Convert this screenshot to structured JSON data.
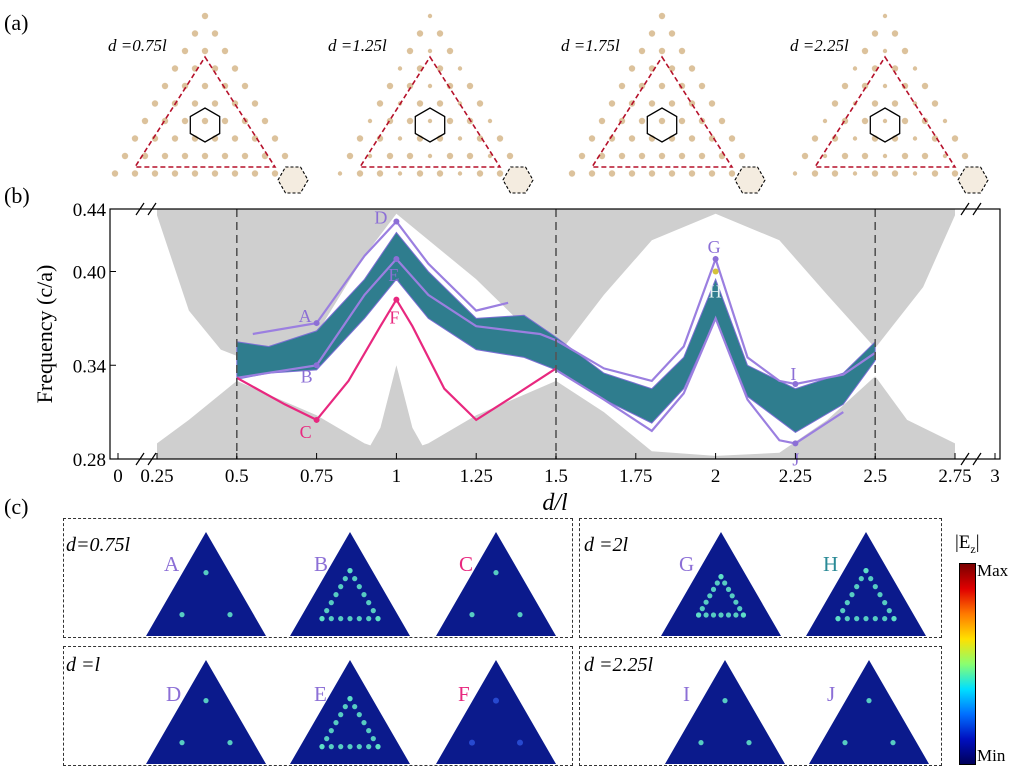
{
  "panel_labels": {
    "a": "(a)",
    "b": "(b)",
    "c": "(c)"
  },
  "lattices": [
    {
      "label": "d =0.75l"
    },
    {
      "label": "d =1.25l"
    },
    {
      "label": "d =1.75l"
    },
    {
      "label": "d =2.25l"
    }
  ],
  "colors": {
    "cylinder": "#dcc29c",
    "dashed_triangle": "#b5102a",
    "band_fill": "#2f7d8e",
    "gray_bulk": "#cfcfcf",
    "purple": "#9b7fe0",
    "pink": "#e8287f",
    "field_bg": "#0b1a8c"
  },
  "chart_data": {
    "type": "line",
    "xlabel": "d/l",
    "ylabel": "Frequency (c/a)",
    "xlim": [
      0,
      3
    ],
    "ylim": [
      0.28,
      0.44
    ],
    "x_ticks": [
      "0",
      "0.25",
      "0.5",
      "0.75",
      "1",
      "1.25",
      "1.5",
      "1.75",
      "2",
      "2.25",
      "2.5",
      "2.75",
      "3"
    ],
    "y_ticks": [
      "0.28",
      "0.34",
      "0.40",
      "0.44"
    ],
    "vertical_dashed_lines": [
      0.5,
      1.5,
      2.5
    ],
    "bulk_upper": [
      [
        0.25,
        0.436
      ],
      [
        0.35,
        0.375
      ],
      [
        0.45,
        0.35
      ],
      [
        0.5,
        0.346
      ],
      [
        0.75,
        0.36
      ],
      [
        0.9,
        0.41
      ],
      [
        1.0,
        0.437
      ],
      [
        1.25,
        0.395
      ],
      [
        1.4,
        0.365
      ],
      [
        1.5,
        0.345
      ],
      [
        1.65,
        0.385
      ],
      [
        1.8,
        0.42
      ],
      [
        2.0,
        0.437
      ],
      [
        2.2,
        0.42
      ],
      [
        2.35,
        0.385
      ],
      [
        2.5,
        0.351
      ],
      [
        2.65,
        0.39
      ],
      [
        2.75,
        0.436
      ]
    ],
    "bulk_lower": [
      [
        0.25,
        0.29
      ],
      [
        0.35,
        0.305
      ],
      [
        0.5,
        0.33
      ],
      [
        0.75,
        0.308
      ],
      [
        0.9,
        0.29
      ],
      [
        1.0,
        0.283
      ],
      [
        1.1,
        0.29
      ],
      [
        1.25,
        0.308
      ],
      [
        1.5,
        0.33
      ],
      [
        1.65,
        0.31
      ],
      [
        1.8,
        0.285
      ],
      [
        2.0,
        0.282
      ],
      [
        2.2,
        0.284
      ],
      [
        2.35,
        0.305
      ],
      [
        2.5,
        0.333
      ],
      [
        2.6,
        0.305
      ],
      [
        2.75,
        0.29
      ]
    ],
    "bulk_center_wedge_top": [
      [
        0.9,
        0.282
      ],
      [
        0.95,
        0.3
      ],
      [
        1.0,
        0.34
      ],
      [
        1.05,
        0.3
      ],
      [
        1.1,
        0.282
      ]
    ],
    "band_top": [
      [
        0.5,
        0.355
      ],
      [
        0.6,
        0.352
      ],
      [
        0.75,
        0.362
      ],
      [
        0.9,
        0.395
      ],
      [
        1.0,
        0.425
      ],
      [
        1.1,
        0.4
      ],
      [
        1.25,
        0.37
      ],
      [
        1.4,
        0.372
      ],
      [
        1.5,
        0.358
      ],
      [
        1.65,
        0.335
      ],
      [
        1.8,
        0.325
      ],
      [
        1.9,
        0.345
      ],
      [
        2.0,
        0.395
      ],
      [
        2.1,
        0.34
      ],
      [
        2.25,
        0.325
      ],
      [
        2.4,
        0.335
      ],
      [
        2.5,
        0.355
      ]
    ],
    "band_bottom": [
      [
        0.5,
        0.331
      ],
      [
        0.6,
        0.335
      ],
      [
        0.75,
        0.337
      ],
      [
        0.9,
        0.37
      ],
      [
        1.0,
        0.395
      ],
      [
        1.1,
        0.37
      ],
      [
        1.25,
        0.35
      ],
      [
        1.4,
        0.345
      ],
      [
        1.5,
        0.337
      ],
      [
        1.65,
        0.318
      ],
      [
        1.8,
        0.303
      ],
      [
        1.9,
        0.325
      ],
      [
        2.0,
        0.37
      ],
      [
        2.1,
        0.32
      ],
      [
        2.25,
        0.297
      ],
      [
        2.4,
        0.315
      ],
      [
        2.5,
        0.343
      ]
    ],
    "series": [
      {
        "color": "#9b7fe0",
        "points": [
          [
            0.55,
            0.36
          ],
          [
            0.75,
            0.367
          ],
          [
            0.9,
            0.41
          ],
          [
            1.0,
            0.432
          ],
          [
            1.1,
            0.405
          ],
          [
            1.25,
            0.375
          ],
          [
            1.35,
            0.38
          ]
        ]
      },
      {
        "color": "#9b7fe0",
        "points": [
          [
            0.5,
            0.332
          ],
          [
            0.75,
            0.34
          ],
          [
            0.9,
            0.385
          ],
          [
            1.0,
            0.408
          ],
          [
            1.1,
            0.385
          ],
          [
            1.25,
            0.365
          ],
          [
            1.45,
            0.36
          ],
          [
            1.5,
            0.356
          ],
          [
            1.65,
            0.338
          ],
          [
            1.8,
            0.33
          ],
          [
            1.9,
            0.352
          ],
          [
            2.0,
            0.408
          ],
          [
            2.1,
            0.345
          ],
          [
            2.2,
            0.33
          ],
          [
            2.25,
            0.328
          ],
          [
            2.4,
            0.334
          ],
          [
            2.5,
            0.348
          ]
        ]
      },
      {
        "color": "#9b7fe0",
        "points": [
          [
            1.5,
            0.337
          ],
          [
            1.65,
            0.318
          ],
          [
            1.8,
            0.298
          ],
          [
            1.9,
            0.322
          ],
          [
            2.0,
            0.37
          ],
          [
            2.1,
            0.318
          ],
          [
            2.2,
            0.292
          ],
          [
            2.25,
            0.29
          ],
          [
            2.4,
            0.31
          ]
        ]
      },
      {
        "color": "#e8287f",
        "points": [
          [
            0.5,
            0.332
          ],
          [
            0.65,
            0.315
          ],
          [
            0.75,
            0.305
          ],
          [
            0.85,
            0.33
          ],
          [
            0.95,
            0.365
          ],
          [
            1.0,
            0.382
          ],
          [
            1.05,
            0.365
          ],
          [
            1.15,
            0.325
          ],
          [
            1.25,
            0.305
          ],
          [
            1.35,
            0.318
          ],
          [
            1.5,
            0.338
          ]
        ]
      }
    ],
    "labeled_points": [
      {
        "name": "A",
        "x": 0.75,
        "y": 0.367,
        "color": "#8c6fd6"
      },
      {
        "name": "B",
        "x": 0.75,
        "y": 0.34,
        "color": "#8c6fd6"
      },
      {
        "name": "C",
        "x": 0.75,
        "y": 0.305,
        "color": "#e8287f"
      },
      {
        "name": "D",
        "x": 1.0,
        "y": 0.432,
        "color": "#8c6fd6"
      },
      {
        "name": "E",
        "x": 1.0,
        "y": 0.408,
        "color": "#8c6fd6"
      },
      {
        "name": "F",
        "x": 1.0,
        "y": 0.382,
        "color": "#e8287f"
      },
      {
        "name": "G",
        "x": 2.0,
        "y": 0.408,
        "color": "#8c6fd6"
      },
      {
        "name": "H",
        "x": 2.0,
        "y": 0.4,
        "color": "#d4c23a"
      },
      {
        "name": "I",
        "x": 2.25,
        "y": 0.328,
        "color": "#8c6fd6"
      },
      {
        "name": "J",
        "x": 2.25,
        "y": 0.29,
        "color": "#8c6fd6"
      }
    ]
  },
  "field_panels": [
    {
      "label": "d=0.75l",
      "modes": [
        {
          "name": "A",
          "color": "#8c6fd6",
          "pattern": "corners"
        },
        {
          "name": "B",
          "color": "#8c6fd6",
          "pattern": "ring"
        },
        {
          "name": "C",
          "color": "#e8287f",
          "pattern": "corners"
        }
      ]
    },
    {
      "label": "d =2l",
      "modes": [
        {
          "name": "G",
          "color": "#8c6fd6",
          "pattern": "inner"
        },
        {
          "name": "H",
          "color": "#2a8a96",
          "pattern": "ring"
        }
      ]
    },
    {
      "label": "d =l",
      "modes": [
        {
          "name": "D",
          "color": "#8c6fd6",
          "pattern": "corners"
        },
        {
          "name": "E",
          "color": "#8c6fd6",
          "pattern": "ring"
        },
        {
          "name": "F",
          "color": "#e8287f",
          "pattern": "weak"
        }
      ]
    },
    {
      "label": "d =2.25l",
      "modes": [
        {
          "name": "I",
          "color": "#8c6fd6",
          "pattern": "corners"
        },
        {
          "name": "J",
          "color": "#8c6fd6",
          "pattern": "corners"
        }
      ]
    }
  ],
  "colorbar": {
    "title": "|E",
    "subscript": "z",
    "close": "|",
    "max_label": "Max",
    "min_label": "Min"
  }
}
